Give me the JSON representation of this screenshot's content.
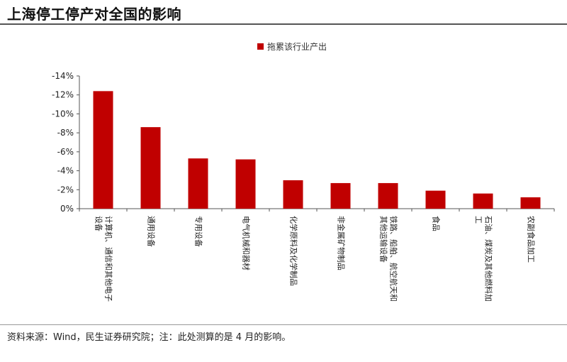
{
  "header": {
    "title": "上海停工停产对全国的影响"
  },
  "footer": {
    "note": "资料来源：Wind，民生证券研究院；注：此处测算的是 4 月的影响。"
  },
  "colors": {
    "bar": "#C00000",
    "axis": "#555555"
  },
  "chart_data": {
    "type": "bar",
    "title": "",
    "xlabel": "",
    "ylabel": "",
    "legend": {
      "entries": [
        "拖累该行业产出"
      ],
      "placement": "top-center"
    },
    "categories": [
      [
        "计算机、通信和其他电子",
        "设备"
      ],
      [
        "通用设备"
      ],
      [
        "专用设备"
      ],
      [
        "电气机械和器材"
      ],
      [
        "化学原料及化学制品"
      ],
      [
        "非金属矿物制品"
      ],
      [
        "铁路、船舶、航空航天和",
        "其他运输设备"
      ],
      [
        "食品"
      ],
      [
        "石油、煤炭及其他燃料加",
        "工"
      ],
      [
        "农副食品加工"
      ]
    ],
    "values": [
      -12.4,
      -8.6,
      -5.3,
      -5.2,
      -3.0,
      -2.7,
      -2.7,
      -1.9,
      -1.6,
      -1.2
    ],
    "ylim": [
      0,
      -14
    ],
    "y_reversed": true,
    "y_ticks": [
      "0%",
      "-2%",
      "-4%",
      "-6%",
      "-8%",
      "-10%",
      "-12%",
      "-14%"
    ],
    "grid": false
  }
}
